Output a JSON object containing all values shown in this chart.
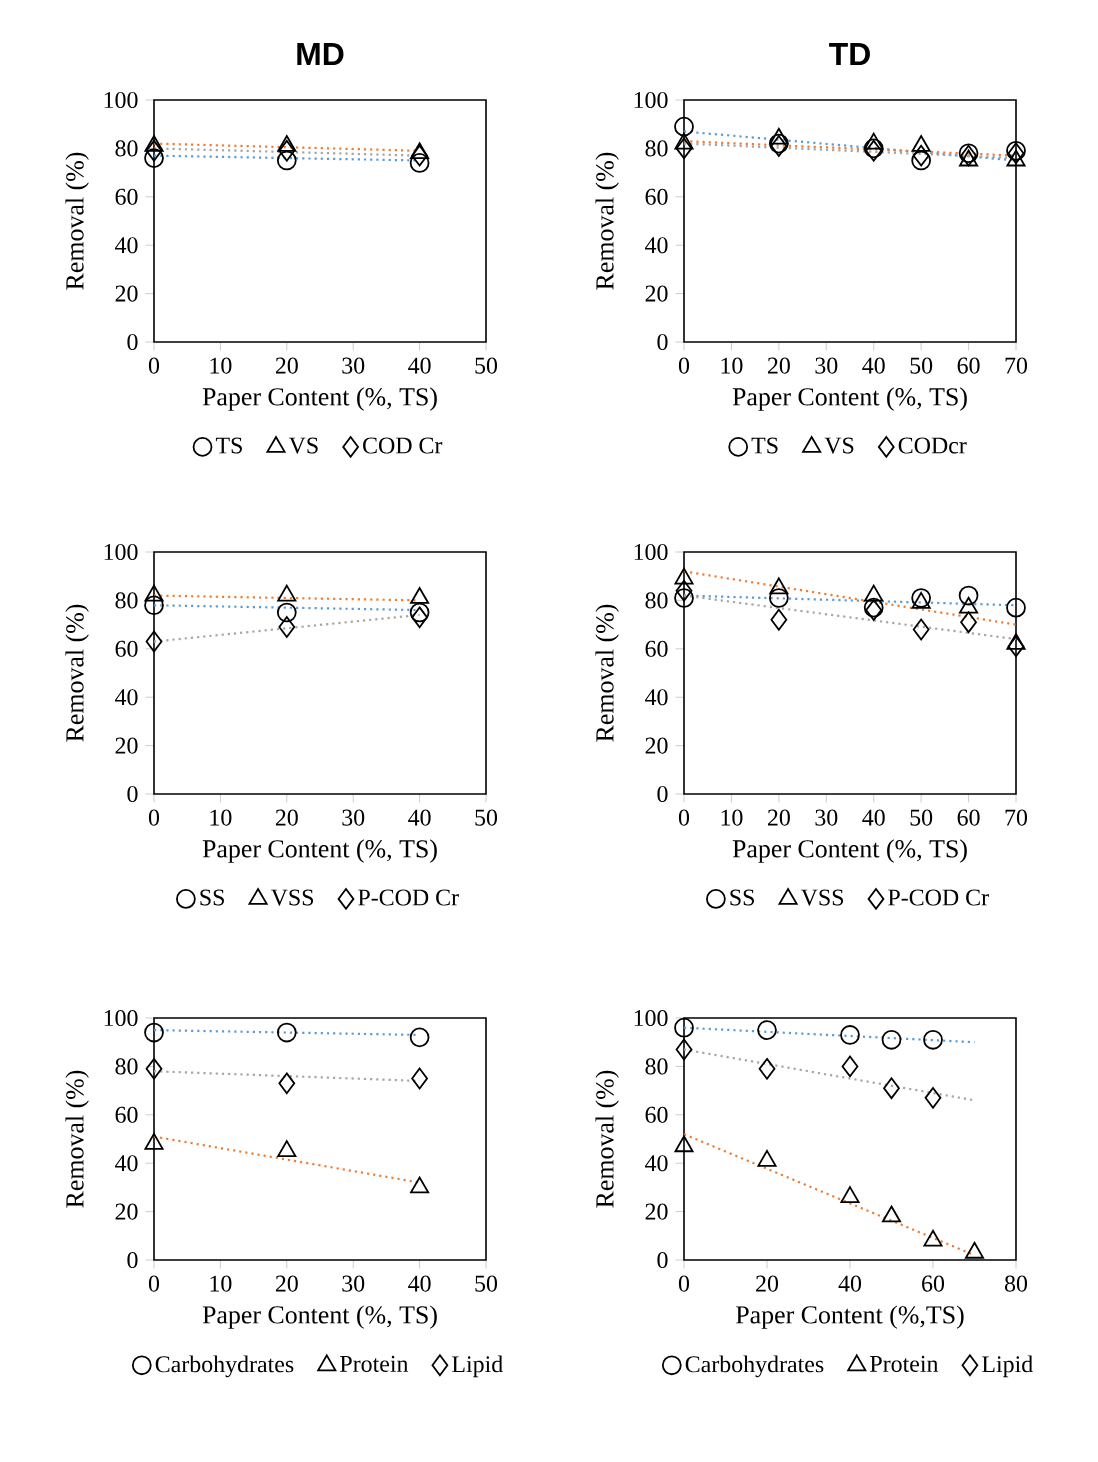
{
  "chart_data": [
    {
      "type": "scatter",
      "title": "MD",
      "xlabel": "Paper Content (%, TS)",
      "ylabel": "Removal (%)",
      "xlim": [
        0,
        50
      ],
      "xticks": [
        0,
        10,
        20,
        30,
        40,
        50
      ],
      "ylim": [
        0,
        100
      ],
      "yticks": [
        0,
        20,
        40,
        60,
        80,
        100
      ],
      "legend": "bottom",
      "series": [
        {
          "type": "line",
          "color": "#5b9bd5",
          "line_style": "dotted",
          "x": [
            0,
            40
          ],
          "values": [
            77,
            75
          ]
        },
        {
          "type": "line",
          "color": "#ed7d31",
          "line_style": "dotted",
          "x": [
            0,
            40
          ],
          "values": [
            82,
            79
          ]
        },
        {
          "type": "line",
          "color": "#a5a5a5",
          "line_style": "dotted",
          "x": [
            0,
            40
          ],
          "values": [
            80,
            77
          ]
        },
        {
          "name": "TS",
          "color": "#000000",
          "marker": "circle",
          "x": [
            0,
            20,
            40
          ],
          "values": [
            76,
            75,
            74
          ]
        },
        {
          "name": "VS",
          "color": "#000000",
          "marker": "triangle",
          "x": [
            0,
            20,
            40
          ],
          "values": [
            81,
            81,
            78
          ]
        },
        {
          "name": "COD Cr",
          "color": "#000000",
          "marker": "diamond",
          "x": [
            0,
            20,
            40
          ],
          "values": [
            79,
            79,
            77
          ]
        }
      ]
    },
    {
      "type": "scatter",
      "title": "TD",
      "xlabel": "Paper Content (%, TS)",
      "ylabel": "Removal (%)",
      "xlim": [
        0,
        70
      ],
      "xticks": [
        0,
        10,
        20,
        30,
        40,
        50,
        60,
        70
      ],
      "ylim": [
        0,
        100
      ],
      "yticks": [
        0,
        20,
        40,
        60,
        80,
        100
      ],
      "legend": "bottom",
      "series": [
        {
          "type": "line",
          "color": "#5b9bd5",
          "line_style": "dotted",
          "x": [
            0,
            70
          ],
          "values": [
            87,
            75
          ]
        },
        {
          "type": "line",
          "color": "#ed7d31",
          "line_style": "dotted",
          "x": [
            0,
            70
          ],
          "values": [
            83,
            77
          ]
        },
        {
          "type": "line",
          "color": "#a5a5a5",
          "line_style": "dotted",
          "x": [
            0,
            70
          ],
          "values": [
            82,
            76
          ]
        },
        {
          "name": "TS",
          "color": "#000000",
          "marker": "circle",
          "x": [
            0,
            20,
            40,
            50,
            60,
            70
          ],
          "values": [
            89,
            82,
            80,
            75,
            78,
            79
          ]
        },
        {
          "name": "VS",
          "color": "#000000",
          "marker": "triangle",
          "x": [
            0,
            20,
            40,
            50,
            60,
            70
          ],
          "values": [
            82,
            84,
            82,
            81,
            75,
            75
          ]
        },
        {
          "name": "CODcr",
          "color": "#000000",
          "marker": "diamond",
          "x": [
            0,
            20,
            40,
            50,
            60,
            70
          ],
          "values": [
            80,
            81,
            79,
            77,
            77,
            78
          ]
        }
      ]
    },
    {
      "type": "scatter",
      "xlabel": "Paper Content (%, TS)",
      "ylabel": "Removal (%)",
      "xlim": [
        0,
        50
      ],
      "xticks": [
        0,
        10,
        20,
        30,
        40,
        50
      ],
      "ylim": [
        0,
        100
      ],
      "yticks": [
        0,
        20,
        40,
        60,
        80,
        100
      ],
      "legend": "bottom",
      "series": [
        {
          "type": "line",
          "color": "#5b9bd5",
          "line_style": "dotted",
          "x": [
            0,
            40
          ],
          "values": [
            78,
            76
          ]
        },
        {
          "type": "line",
          "color": "#ed7d31",
          "line_style": "dotted",
          "x": [
            0,
            40
          ],
          "values": [
            82,
            80
          ]
        },
        {
          "type": "line",
          "color": "#a5a5a5",
          "line_style": "dotted",
          "x": [
            0,
            40
          ],
          "values": [
            63,
            74
          ]
        },
        {
          "name": "SS",
          "color": "#000000",
          "marker": "circle",
          "x": [
            0,
            20,
            40
          ],
          "values": [
            78,
            75,
            75
          ]
        },
        {
          "name": "VSS",
          "color": "#000000",
          "marker": "triangle",
          "x": [
            0,
            20,
            40
          ],
          "values": [
            82,
            82,
            81
          ]
        },
        {
          "name": "P-COD Cr",
          "color": "#000000",
          "marker": "diamond",
          "x": [
            0,
            20,
            40
          ],
          "values": [
            63,
            69,
            73
          ]
        }
      ]
    },
    {
      "type": "scatter",
      "xlabel": "Paper Content (%, TS)",
      "ylabel": "Removal (%)",
      "xlim": [
        0,
        70
      ],
      "xticks": [
        0,
        10,
        20,
        30,
        40,
        50,
        60,
        70
      ],
      "ylim": [
        0,
        100
      ],
      "yticks": [
        0,
        20,
        40,
        60,
        80,
        100
      ],
      "legend": "bottom",
      "series": [
        {
          "type": "line",
          "color": "#5b9bd5",
          "line_style": "dotted",
          "x": [
            0,
            70
          ],
          "values": [
            82,
            78
          ]
        },
        {
          "type": "line",
          "color": "#ed7d31",
          "line_style": "dotted",
          "x": [
            0,
            70
          ],
          "values": [
            92,
            70
          ]
        },
        {
          "type": "line",
          "color": "#a5a5a5",
          "line_style": "dotted",
          "x": [
            0,
            70
          ],
          "values": [
            82,
            64
          ]
        },
        {
          "name": "SS",
          "color": "#000000",
          "marker": "circle",
          "x": [
            0,
            20,
            40,
            50,
            60,
            70
          ],
          "values": [
            81,
            81,
            77,
            81,
            82,
            77
          ]
        },
        {
          "name": "VSS",
          "color": "#000000",
          "marker": "triangle",
          "x": [
            0,
            20,
            40,
            50,
            60,
            70
          ],
          "values": [
            89,
            85,
            82,
            79,
            77,
            62
          ]
        },
        {
          "name": "P-COD Cr",
          "color": "#000000",
          "marker": "diamond",
          "x": [
            0,
            20,
            40,
            50,
            60,
            70
          ],
          "values": [
            84,
            72,
            76,
            68,
            71,
            61
          ]
        }
      ]
    },
    {
      "type": "scatter",
      "xlabel": "Paper Content (%, TS)",
      "ylabel": "Removal (%)",
      "xlim": [
        0,
        50
      ],
      "xticks": [
        0,
        10,
        20,
        30,
        40,
        50
      ],
      "ylim": [
        0,
        100
      ],
      "yticks": [
        0,
        20,
        40,
        60,
        80,
        100
      ],
      "legend": "bottom",
      "series": [
        {
          "type": "line",
          "color": "#5b9bd5",
          "line_style": "dotted",
          "x": [
            0,
            40
          ],
          "values": [
            95,
            93
          ]
        },
        {
          "type": "line",
          "color": "#ed7d31",
          "line_style": "dotted",
          "x": [
            0,
            40
          ],
          "values": [
            51,
            32
          ]
        },
        {
          "type": "line",
          "color": "#a5a5a5",
          "line_style": "dotted",
          "x": [
            0,
            40
          ],
          "values": [
            78,
            74
          ]
        },
        {
          "name": "Carbohydrates",
          "color": "#000000",
          "marker": "circle",
          "x": [
            0,
            20,
            40
          ],
          "values": [
            94,
            94,
            92
          ]
        },
        {
          "name": "Protein",
          "color": "#000000",
          "marker": "triangle",
          "x": [
            0,
            20,
            40
          ],
          "values": [
            48,
            45,
            30
          ]
        },
        {
          "name": "Lipid",
          "color": "#000000",
          "marker": "diamond",
          "x": [
            0,
            20,
            40
          ],
          "values": [
            79,
            73,
            75
          ]
        }
      ]
    },
    {
      "type": "scatter",
      "xlabel": "Paper Content (%,TS)",
      "ylabel": "Removal (%)",
      "xlim": [
        0,
        80
      ],
      "xticks": [
        0,
        20,
        40,
        60,
        80
      ],
      "ylim": [
        0,
        100
      ],
      "yticks": [
        0,
        20,
        40,
        60,
        80,
        100
      ],
      "legend": "bottom",
      "series": [
        {
          "type": "line",
          "color": "#5b9bd5",
          "line_style": "dotted",
          "x": [
            0,
            70
          ],
          "values": [
            96,
            90
          ]
        },
        {
          "type": "line",
          "color": "#ed7d31",
          "line_style": "dotted",
          "x": [
            0,
            70
          ],
          "values": [
            52,
            2
          ]
        },
        {
          "type": "line",
          "color": "#a5a5a5",
          "line_style": "dotted",
          "x": [
            0,
            70
          ],
          "values": [
            87,
            66
          ]
        },
        {
          "name": "Carbohydrates",
          "color": "#000000",
          "marker": "circle",
          "x": [
            0,
            20,
            40,
            50,
            60
          ],
          "values": [
            96,
            95,
            93,
            91,
            91
          ]
        },
        {
          "name": "Protein",
          "color": "#000000",
          "marker": "triangle",
          "x": [
            0,
            20,
            40,
            50,
            60,
            70
          ],
          "values": [
            47,
            41,
            26,
            18,
            8,
            3
          ]
        },
        {
          "name": "Lipid",
          "color": "#000000",
          "marker": "diamond",
          "x": [
            0,
            20,
            40,
            50,
            60
          ],
          "values": [
            87,
            79,
            80,
            71,
            67
          ]
        }
      ]
    }
  ]
}
